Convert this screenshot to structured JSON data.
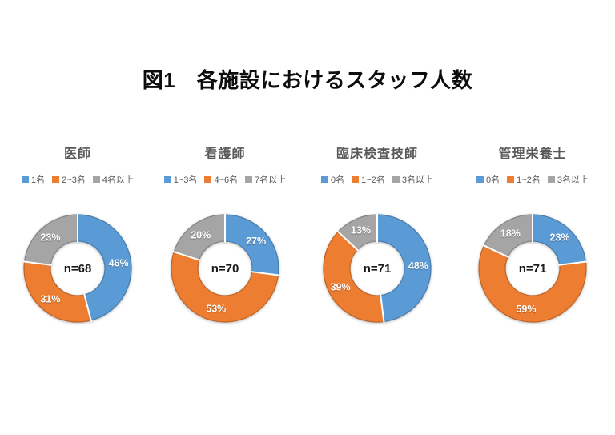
{
  "title": "図1　各施設におけるスタッフ人数",
  "colors": {
    "series_blue": "#5B9BD5",
    "series_orange": "#ED7D31",
    "series_gray": "#A5A5A5",
    "chart_title_text": "#595959",
    "legend_text": "#595959",
    "slice_label_text": "#FFFFFF",
    "figure_title_text": "#0D0D0D",
    "background": "#FFFFFF"
  },
  "chart_data": [
    {
      "type": "pie",
      "subtype": "donut",
      "title": "医師",
      "center_label": "n=68",
      "sample_size": 68,
      "categories": [
        "1名",
        "2~3名",
        "4名以上"
      ],
      "values": [
        46,
        31,
        23
      ],
      "unit": "%",
      "slice_colors": [
        "#5B9BD5",
        "#ED7D31",
        "#A5A5A5"
      ],
      "start_angle_deg": 0,
      "direction": "clockwise",
      "legend_position": "top"
    },
    {
      "type": "pie",
      "subtype": "donut",
      "title": "看護師",
      "center_label": "n=70",
      "sample_size": 70,
      "categories": [
        "1~3名",
        "4~6名",
        "7名以上"
      ],
      "values": [
        27,
        53,
        20
      ],
      "unit": "%",
      "slice_colors": [
        "#5B9BD5",
        "#ED7D31",
        "#A5A5A5"
      ],
      "start_angle_deg": 0,
      "direction": "clockwise",
      "legend_position": "top"
    },
    {
      "type": "pie",
      "subtype": "donut",
      "title": "臨床検査技師",
      "center_label": "n=71",
      "sample_size": 71,
      "categories": [
        "0名",
        "1~2名",
        "3名以上"
      ],
      "values": [
        48,
        39,
        13
      ],
      "unit": "%",
      "slice_colors": [
        "#5B9BD5",
        "#ED7D31",
        "#A5A5A5"
      ],
      "start_angle_deg": 0,
      "direction": "clockwise",
      "legend_position": "top"
    },
    {
      "type": "pie",
      "subtype": "donut",
      "title": "管理栄養士",
      "center_label": "n=71",
      "sample_size": 71,
      "categories": [
        "0名",
        "1~2名",
        "3名以上"
      ],
      "values": [
        23,
        59,
        18
      ],
      "unit": "%",
      "slice_colors": [
        "#5B9BD5",
        "#ED7D31",
        "#A5A5A5"
      ],
      "start_angle_deg": 0,
      "direction": "clockwise",
      "legend_position": "top"
    }
  ]
}
